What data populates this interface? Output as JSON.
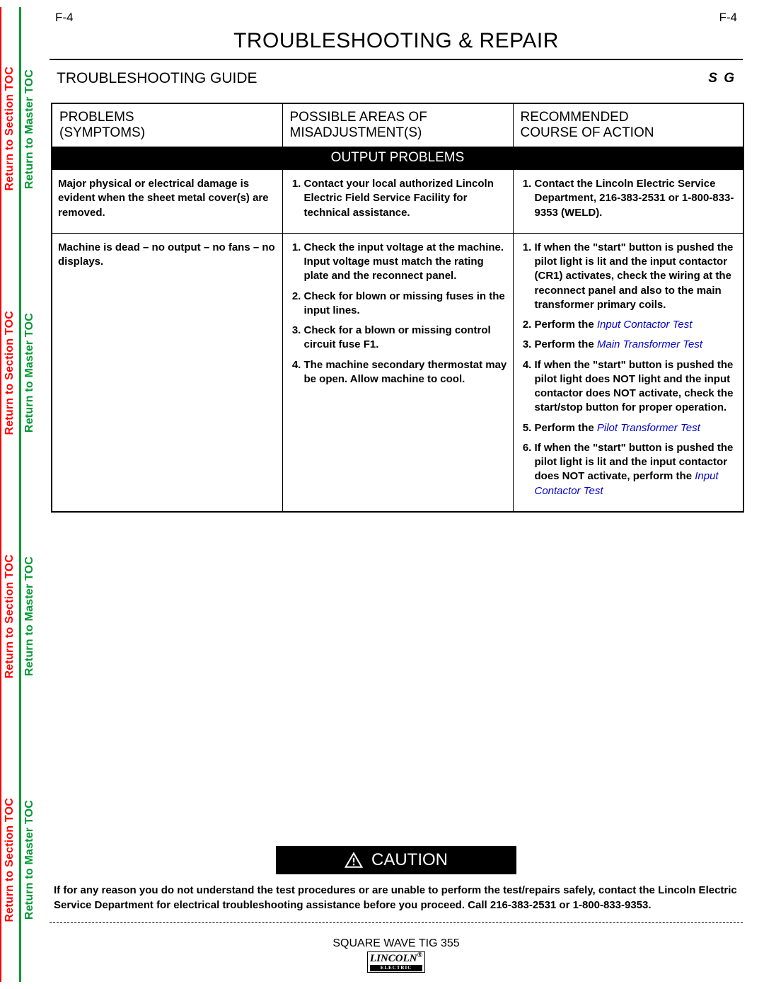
{
  "pageCode": "F-4",
  "mainTitle": "TROUBLESHOOTING & REPAIR",
  "subTitle": "TROUBLESHOOTING GUIDE",
  "subRight": "S    G",
  "sideLinks": {
    "section": "Return to Section TOC",
    "master": "Return to Master TOC"
  },
  "columns": {
    "c1a": "PROBLEMS",
    "c1b": "(SYMPTOMS)",
    "c2a": "POSSIBLE AREAS OF",
    "c2b": "MISADJUSTMENT(S)",
    "c3a": "RECOMMENDED",
    "c3b": "COURSE OF ACTION"
  },
  "sectionBar": "OUTPUT PROBLEMS",
  "rows": [
    {
      "problem": "Major physical or electrical damage is evident when the sheet metal cover(s) are removed.",
      "misadjust": [
        "Contact your local authorized Lincoln Electric Field Service Facility for technical assistance."
      ],
      "action": [
        "Contact the Lincoln Electric Service Department,  216-383-2531 or 1-800-833-9353 (WELD)."
      ]
    },
    {
      "problem": "Machine is dead – no output – no fans – no displays.",
      "misadjust": [
        "Check the input voltage at the machine.  Input voltage must match the rating plate and the reconnect panel.",
        "Check for blown or missing fuses in the input lines.",
        "Check for a blown or missing control circuit fuse F1.",
        "The machine secondary thermostat may be open.  Allow machine to cool."
      ],
      "action": [
        "If when the \"start\" button is pushed the pilot light is lit and the input contactor (CR1) activates, check the wiring at the reconnect panel and also to the main transformer primary coils.",
        {
          "pre": "Perform the ",
          "link": "Input Contactor Test"
        },
        {
          "pre": "Perform the ",
          "link": "Main Transformer Test"
        },
        "If when the \"start\" button is pushed the pilot light does NOT light and the input contactor does NOT activate, check the start/stop button for proper operation.",
        {
          "pre": "Perform the ",
          "link": "Pilot Transformer Test"
        },
        {
          "pre": "If when the \"start\" button is pushed the pilot light is lit and the input contactor does NOT activate, perform the ",
          "link": "Input Contactor Test"
        }
      ]
    }
  ],
  "cautionLabel": "CAUTION",
  "cautionText": "If for any reason you do not understand the test procedures or are unable to perform the test/repairs safely, contact the Lincoln Electric Service Department for electrical troubleshooting assistance before you proceed.  Call 216-383-2531 or 1-800-833-9353.",
  "footerModel": "SQUARE WAVE TIG 355",
  "footerBrand": "LINCOLN",
  "footerSub": "ELECTRIC"
}
